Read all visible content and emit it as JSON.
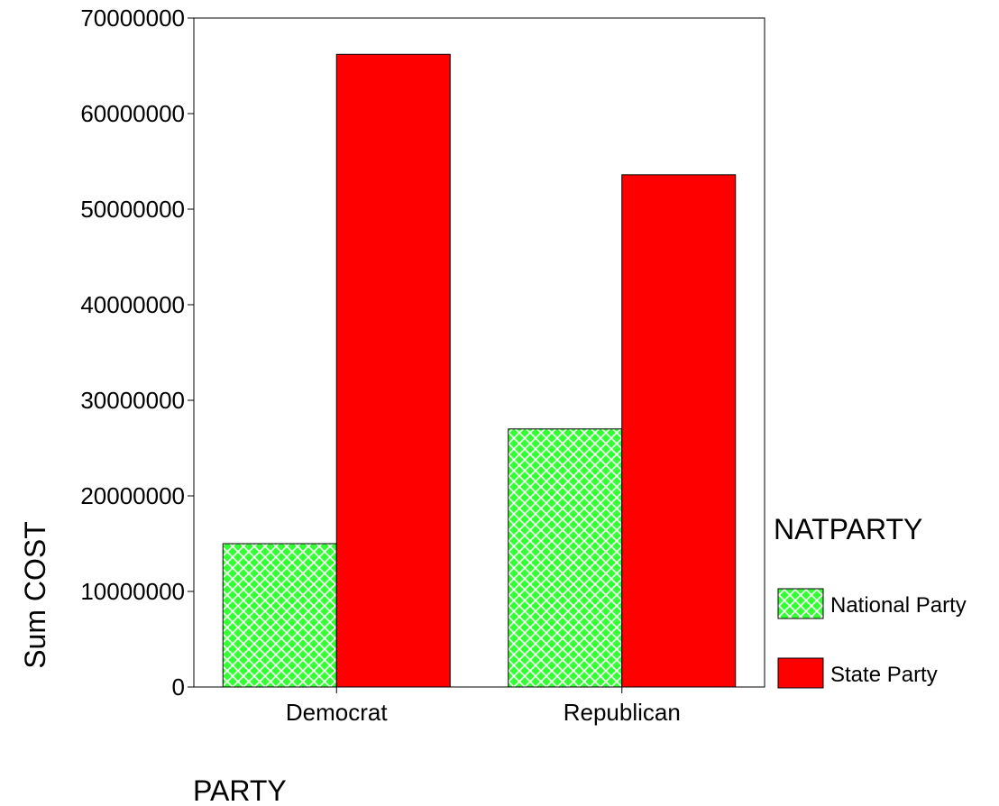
{
  "chart_data": {
    "type": "bar",
    "title": "",
    "xlabel": "PARTY",
    "ylabel": "Sum COST",
    "categories": [
      "Democrat",
      "Republican"
    ],
    "series": [
      {
        "name": "National Party",
        "values": [
          15000000,
          27000000
        ],
        "color": "#33ff33",
        "pattern": "crosshatch"
      },
      {
        "name": "State Party",
        "values": [
          66200000,
          53600000
        ],
        "color": "#ff0000",
        "pattern": "solid"
      }
    ],
    "ylim": [
      0,
      70000000
    ],
    "yticks": [
      "0",
      "10000000",
      "20000000",
      "30000000",
      "40000000",
      "50000000",
      "60000000",
      "70000000"
    ],
    "grid": false,
    "legend": {
      "title": "NATPARTY",
      "placement": "right"
    }
  }
}
